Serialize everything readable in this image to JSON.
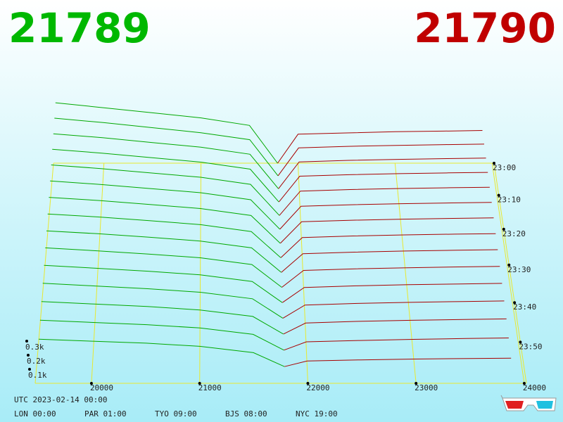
{
  "chart_data": {
    "type": "depth3d",
    "bid_price": 21789,
    "ask_price": 21790,
    "bid_color": "#00a800",
    "ask_color": "#a80000",
    "price_bid_color": "#00b800",
    "price_ask_color": "#c00000",
    "xlim": [
      19480,
      24020
    ],
    "xticks": [
      20000,
      21000,
      22000,
      23000,
      24000
    ],
    "yticks": [
      {
        "value": 100,
        "label": "0.1k"
      },
      {
        "value": 200,
        "label": "0.2k"
      },
      {
        "value": 300,
        "label": "0.3k"
      }
    ],
    "tlim": [
      "23:00",
      "00:00"
    ],
    "tticks": [
      "23:00",
      "23:10",
      "23:20",
      "23:30",
      "23:40",
      "23:50"
    ],
    "bid_prices": [
      19500,
      20000,
      20500,
      21000,
      21500,
      21789
    ],
    "ask_prices": [
      21790,
      22000,
      22500,
      23000,
      23500,
      23900
    ],
    "snapshots": [
      {
        "time": "23:00",
        "bids": [
          480,
          440,
          400,
          360,
          300,
          0
        ],
        "asks": [
          0,
          230,
          240,
          250,
          255,
          260
        ]
      },
      {
        "time": "23:04",
        "bids": [
          455,
          420,
          380,
          340,
          285,
          0
        ],
        "asks": [
          0,
          220,
          232,
          240,
          246,
          250
        ]
      },
      {
        "time": "23:08",
        "bids": [
          430,
          400,
          362,
          325,
          270,
          0
        ],
        "asks": [
          0,
          210,
          222,
          230,
          236,
          240
        ]
      },
      {
        "time": "23:12",
        "bids": [
          410,
          380,
          345,
          310,
          255,
          0
        ],
        "asks": [
          0,
          200,
          212,
          220,
          226,
          230
        ]
      },
      {
        "time": "23:16",
        "bids": [
          390,
          362,
          328,
          295,
          240,
          0
        ],
        "asks": [
          0,
          188,
          200,
          208,
          214,
          218
        ]
      },
      {
        "time": "23:20",
        "bids": [
          370,
          344,
          312,
          280,
          226,
          0
        ],
        "asks": [
          0,
          176,
          188,
          196,
          202,
          206
        ]
      },
      {
        "time": "23:24",
        "bids": [
          350,
          326,
          296,
          265,
          212,
          0
        ],
        "asks": [
          0,
          164,
          176,
          184,
          190,
          194
        ]
      },
      {
        "time": "23:28",
        "bids": [
          330,
          308,
          280,
          250,
          198,
          0
        ],
        "asks": [
          0,
          152,
          164,
          172,
          178,
          182
        ]
      },
      {
        "time": "23:32",
        "bids": [
          312,
          290,
          264,
          235,
          184,
          0
        ],
        "asks": [
          0,
          140,
          152,
          160,
          166,
          170
        ]
      },
      {
        "time": "23:36",
        "bids": [
          294,
          272,
          248,
          220,
          170,
          0
        ],
        "asks": [
          0,
          126,
          138,
          146,
          152,
          156
        ]
      },
      {
        "time": "23:40",
        "bids": [
          276,
          254,
          232,
          205,
          156,
          0
        ],
        "asks": [
          0,
          112,
          124,
          132,
          138,
          142
        ]
      },
      {
        "time": "23:44",
        "bids": [
          256,
          236,
          216,
          190,
          142,
          0
        ],
        "asks": [
          0,
          96,
          108,
          116,
          122,
          126
        ]
      },
      {
        "time": "23:48",
        "bids": [
          236,
          218,
          200,
          175,
          128,
          0
        ],
        "asks": [
          0,
          80,
          92,
          100,
          106,
          110
        ]
      },
      {
        "time": "23:52",
        "bids": [
          216,
          200,
          184,
          160,
          114,
          0
        ],
        "asks": [
          0,
          60,
          70,
          78,
          84,
          88
        ]
      },
      {
        "time": "23:56",
        "bids": [
          196,
          182,
          168,
          145,
          100,
          0
        ],
        "asks": [
          0,
          40,
          48,
          54,
          58,
          60
        ]
      }
    ],
    "footer": {
      "utc": "UTC 2023-02-14 00:00",
      "cities": [
        "LON 00:00",
        "PAR 01:00",
        "TYO 09:00",
        "BJS 08:00",
        "NYC 19:00"
      ]
    }
  }
}
